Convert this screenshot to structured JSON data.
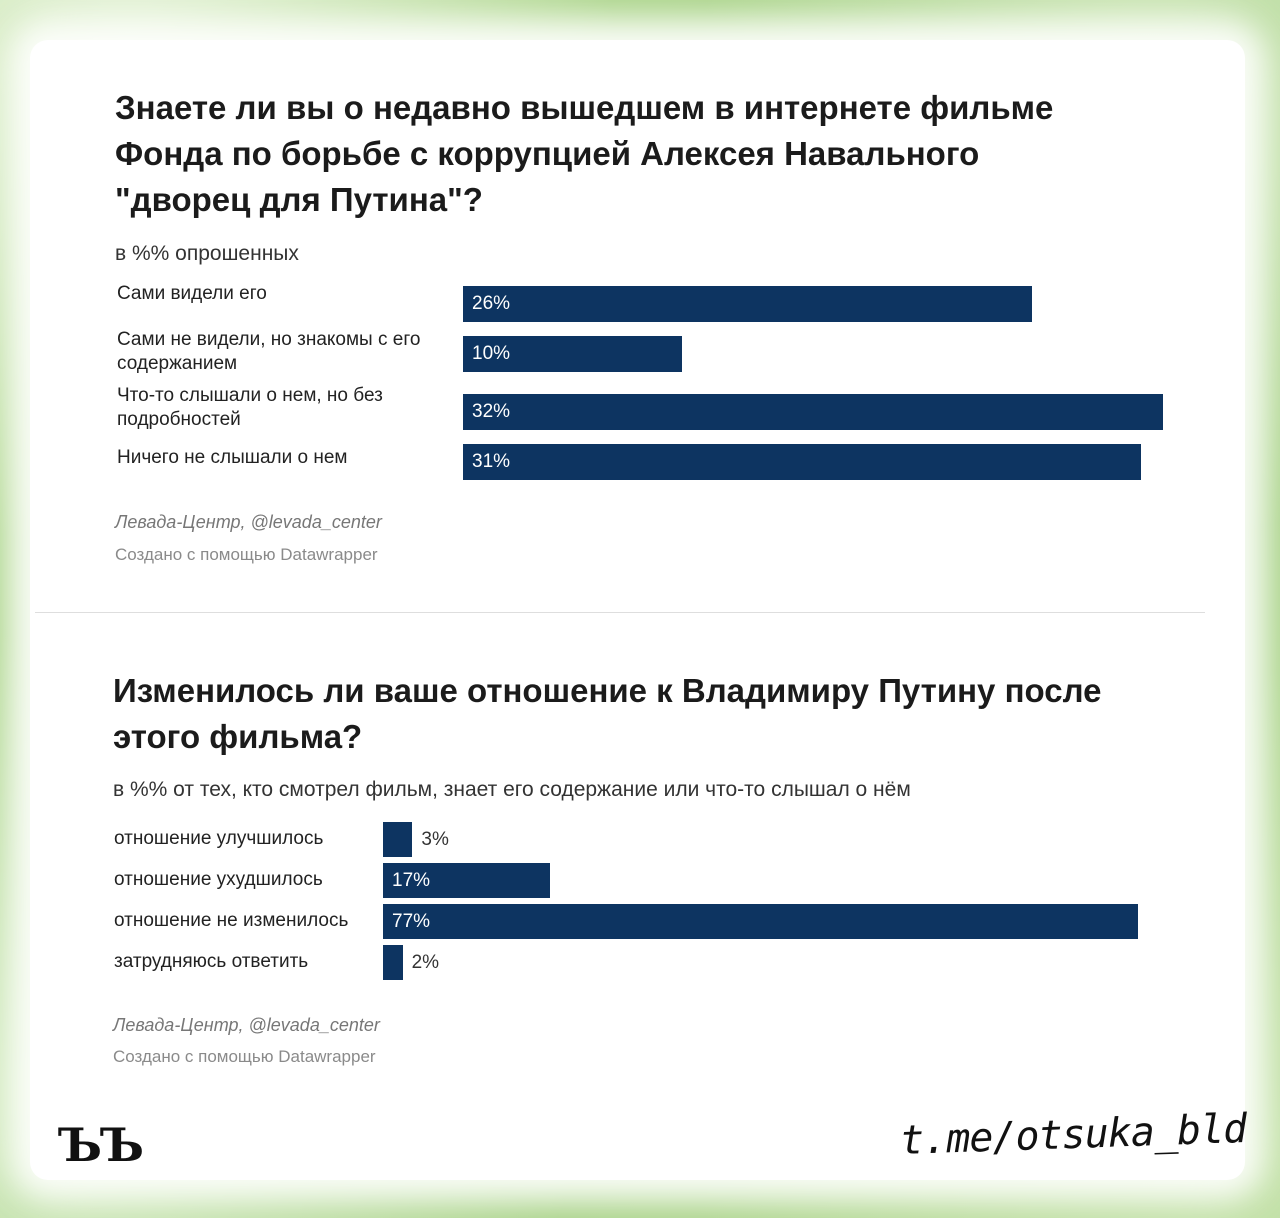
{
  "chart_data": [
    {
      "type": "bar",
      "orientation": "horizontal",
      "title": "Знаете ли вы о недавно вышедшем в интернете фильме Фонда по борьбе с коррупцией Алексея Навального \"дворец для Путина\"?",
      "subtitle": "в %% опрошенных",
      "categories": [
        "Сами видели его",
        "Сами не видели, но знакомы с его содержанием",
        "Что-то слышали о нем, но без подробностей",
        "Ничего не слышали о нем"
      ],
      "values": [
        26,
        10,
        32,
        31
      ],
      "value_labels": [
        "26%",
        "10%",
        "32%",
        "31%"
      ],
      "xlim": [
        0,
        32
      ],
      "bar_color": "#0d3461",
      "source": "Левада-Центр, @levada_center",
      "credit": "Создано с помощью Datawrapper"
    },
    {
      "type": "bar",
      "orientation": "horizontal",
      "title": "Изменилось ли ваше отношение к Владимиру Путину после этого фильма?",
      "subtitle": "в %% от тех, кто смотрел фильм, знает его содержание или что-то слышал о нём",
      "categories": [
        "отношение улучшилось",
        "отношение ухудшилось",
        "отношение не изменилось",
        "затрудняюсь ответить"
      ],
      "values": [
        3,
        17,
        77,
        2
      ],
      "value_labels": [
        "3%",
        "17%",
        "77%",
        "2%"
      ],
      "xlim": [
        0,
        77
      ],
      "bar_color": "#0d3461",
      "source": "Левада-Центр, @levada_center",
      "credit": "Создано с помощью Datawrapper"
    }
  ],
  "footer": {
    "logo": "ЪЪ",
    "channel": "t.me/otsuka_bld"
  }
}
